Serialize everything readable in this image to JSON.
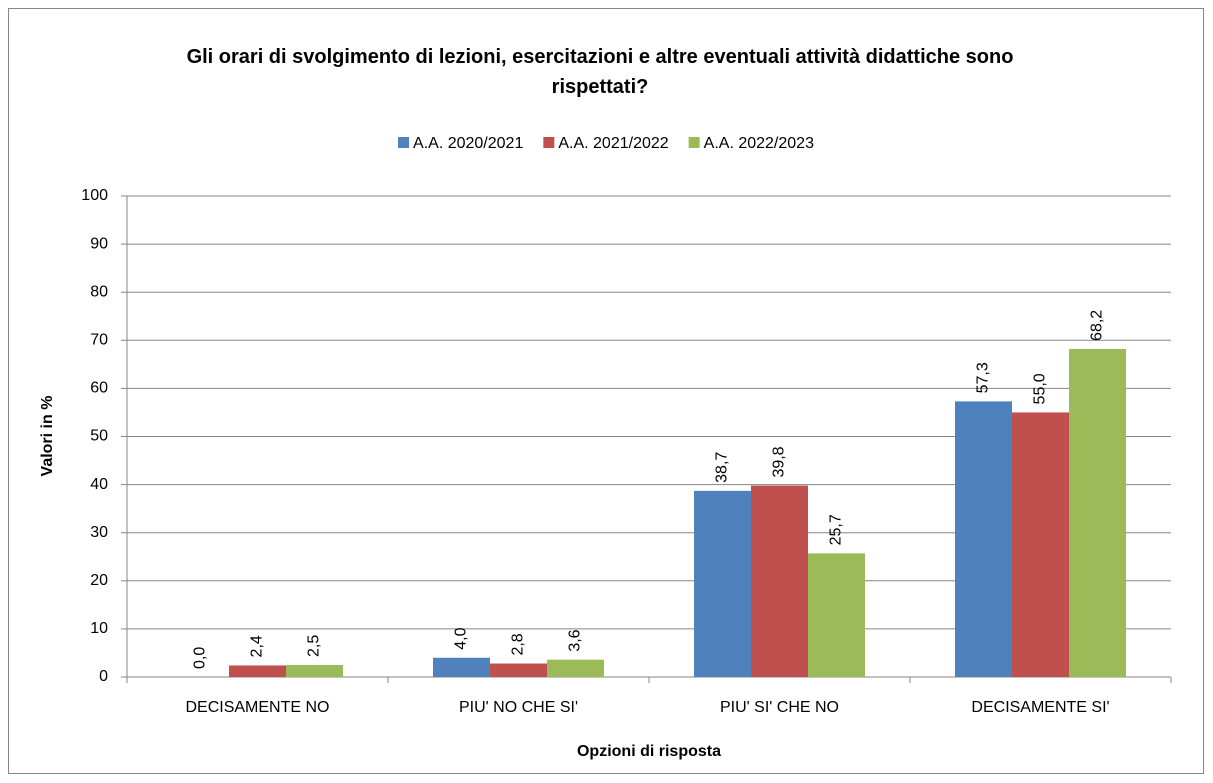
{
  "chart_data": {
    "type": "bar",
    "title": "Gli orari di svolgimento di lezioni, esercitazioni e altre eventuali attività didattiche sono rispettati?",
    "x_label": "Opzioni di risposta",
    "y_label": "Valori in %",
    "categories": [
      "DECISAMENTE NO",
      "PIU' NO CHE SI'",
      "PIU' SI' CHE NO",
      "DECISAMENTE SI'"
    ],
    "series": [
      {
        "name": "A.A. 2020/2021",
        "color": "#4f81bd",
        "values": [
          0,
          4,
          38.7,
          57.3
        ],
        "value_labels": [
          "0,0",
          "4,0",
          "38,7",
          "57,3"
        ]
      },
      {
        "name": "A.A. 2021/2022",
        "color": "#c0504d",
        "values": [
          2.4,
          2.8,
          39.8,
          55
        ],
        "value_labels": [
          "2,4",
          "2,8",
          "39,8",
          "55,0"
        ]
      },
      {
        "name": "A.A. 2022/2023",
        "color": "#9bbb59",
        "values": [
          2.5,
          3.6,
          25.7,
          68.2
        ],
        "value_labels": [
          "2,5",
          "3,6",
          "25,7",
          "68,2"
        ]
      }
    ],
    "ylim": [
      0,
      100
    ],
    "yticks": [
      0,
      10,
      20,
      30,
      40,
      50,
      60,
      70,
      80,
      90,
      100
    ],
    "grid": true,
    "legend": "top"
  }
}
